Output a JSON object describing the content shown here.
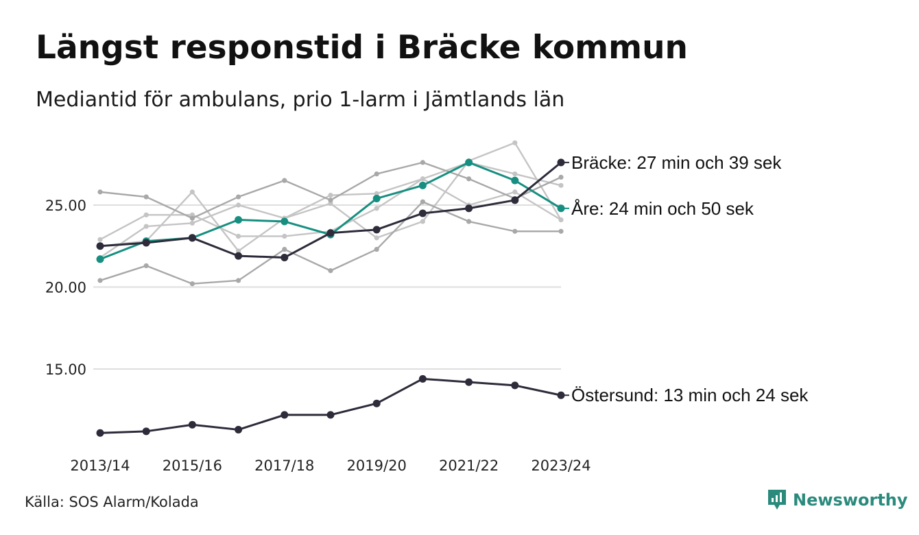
{
  "title": "Längst responstid i Bräcke kommun",
  "subtitle": "Mediantid för ambulans, prio 1-larm i Jämtlands län",
  "source": "Källa: SOS Alarm/Kolada",
  "brand": {
    "name": "Newsworthy",
    "icon": "newsworthy-logo-icon",
    "color": "#2a8a7c"
  },
  "chart_data": {
    "type": "line",
    "x": [
      "2013/14",
      "2014/15",
      "2015/16",
      "2016/17",
      "2017/18",
      "2018/19",
      "2019/20",
      "2020/21",
      "2021/22",
      "2022/23",
      "2023/24"
    ],
    "x_tick_labels": [
      "2013/14",
      "2015/16",
      "2017/18",
      "2019/20",
      "2021/22",
      "2023/24"
    ],
    "y_ticks": [
      "15.00",
      "20.00",
      "25.00"
    ],
    "ylim": [
      10.5,
      29
    ],
    "grid": "horizontal",
    "series": [
      {
        "name": "",
        "color": "#c4c4c4",
        "values": [
          22.9,
          24.4,
          24.4,
          23.1,
          23.1,
          23.4,
          24.8,
          26.6,
          25.0,
          25.8,
          24.1
        ]
      },
      {
        "name": "",
        "color": "#c4c4c4",
        "values": [
          21.8,
          23.7,
          23.9,
          25.0,
          24.2,
          25.6,
          25.7,
          26.6,
          27.6,
          26.9,
          26.2
        ]
      },
      {
        "name": "",
        "color": "#c4c4c4",
        "values": [
          22.5,
          22.8,
          25.8,
          22.2,
          24.2,
          25.1,
          23.0,
          24.0,
          27.7,
          28.8,
          24.1
        ]
      },
      {
        "name": "",
        "color": "#a8a8a8",
        "values": [
          25.8,
          25.5,
          24.2,
          25.5,
          26.5,
          25.3,
          26.9,
          27.6,
          26.6,
          25.4,
          26.7
        ]
      },
      {
        "name": "",
        "color": "#a8a8a8",
        "values": [
          20.4,
          21.3,
          20.2,
          20.4,
          22.3,
          21.0,
          22.3,
          25.2,
          24.0,
          23.4,
          23.4
        ]
      },
      {
        "name": "Östersund: 13 min och 24 sek",
        "color": "#2e2b3a",
        "highlight": true,
        "values": [
          11.1,
          11.2,
          11.6,
          11.3,
          12.2,
          12.2,
          12.9,
          14.4,
          14.2,
          14.0,
          13.4
        ]
      },
      {
        "name": "Åre: 24 min och 50 sek",
        "color": "#168f80",
        "highlight": true,
        "values": [
          21.7,
          22.8,
          23.0,
          24.1,
          24.0,
          23.2,
          25.4,
          26.2,
          27.6,
          26.5,
          24.8
        ]
      },
      {
        "name": "Bräcke: 27 min och 39 sek",
        "color": "#2e2b3a",
        "highlight": true,
        "values": [
          22.5,
          22.7,
          23.0,
          21.9,
          21.8,
          23.3,
          23.5,
          24.5,
          24.8,
          25.3,
          27.6
        ]
      }
    ]
  }
}
